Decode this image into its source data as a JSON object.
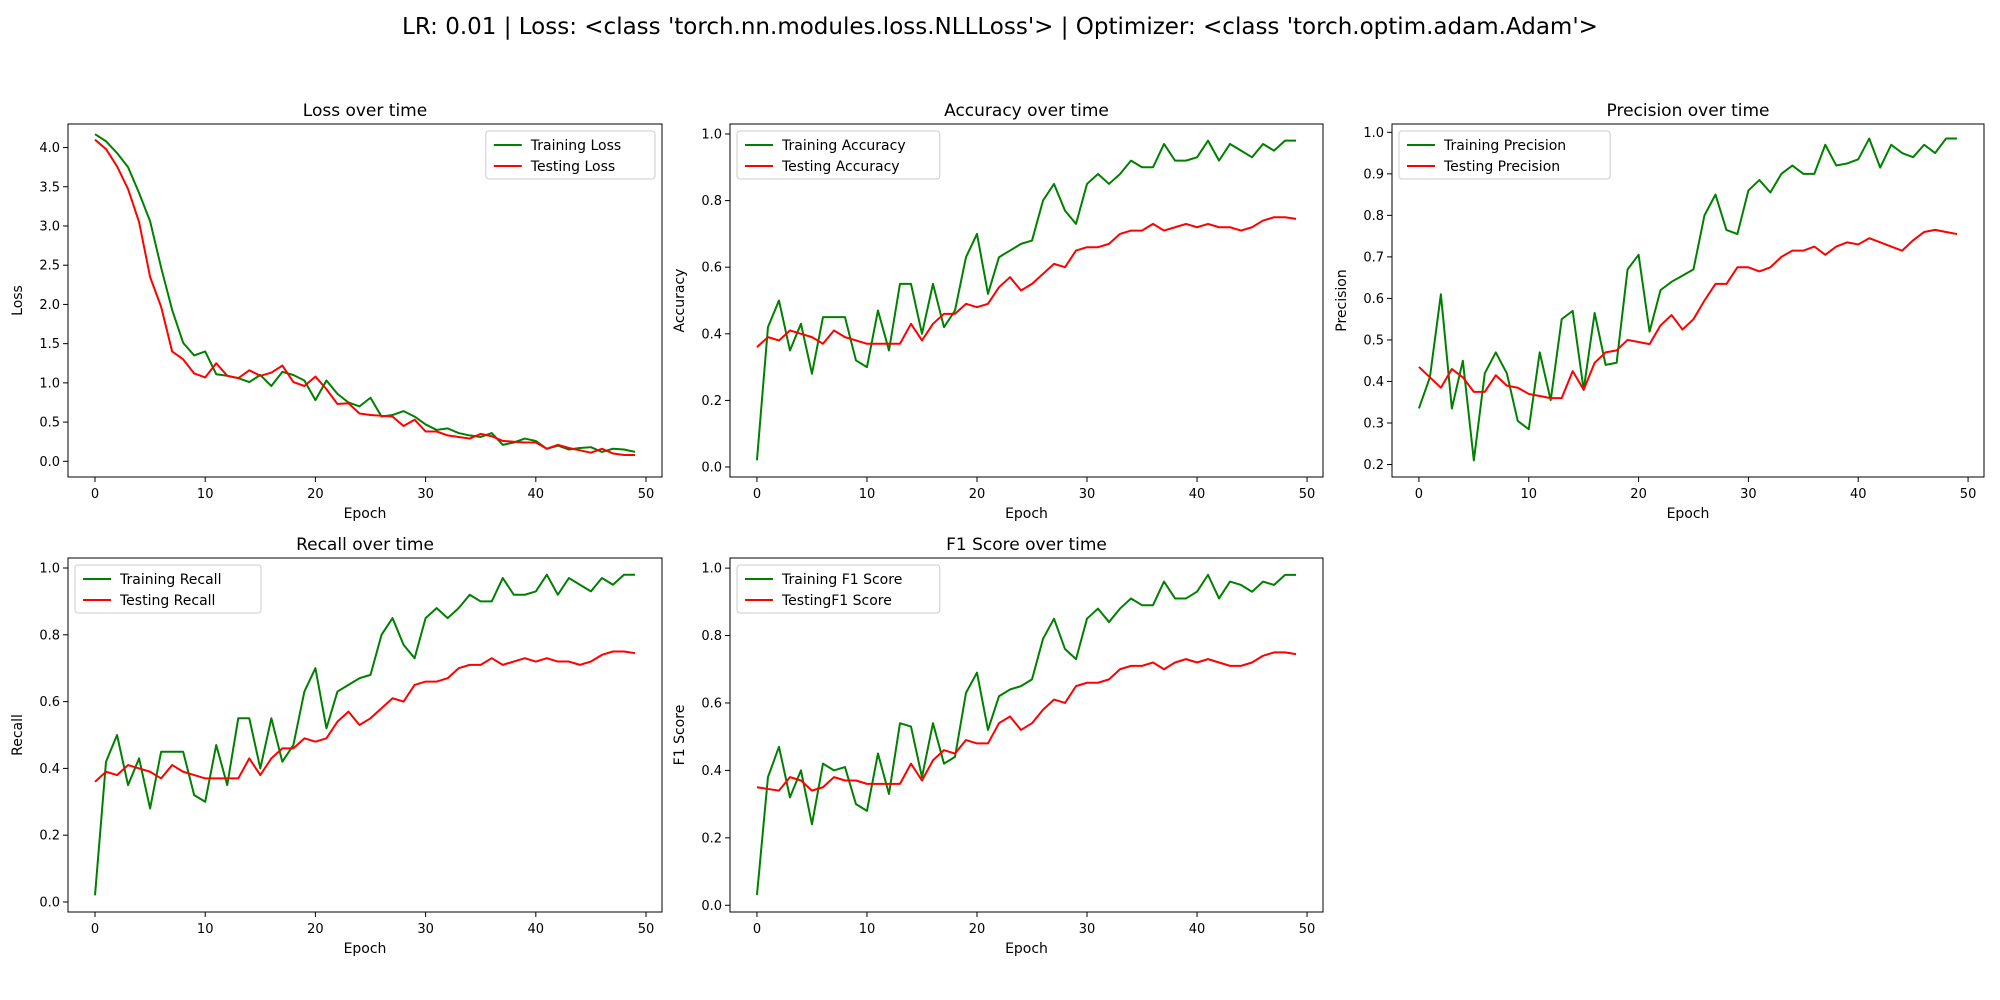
{
  "suptitle": "LR: 0.01 | Loss: <class 'torch.nn.modules.loss.NLLLoss'> | Optimizer: <class 'torch.optim.adam.Adam'>",
  "colors": {
    "train": "#008000",
    "test": "#ff0000"
  },
  "chart_data": [
    {
      "type": "line",
      "title": "Loss over time",
      "xlabel": "Epoch",
      "ylabel": "Loss",
      "xlim": [
        -2.45,
        51.45
      ],
      "ylim": [
        -0.2,
        4.3
      ],
      "xticks": [
        0,
        10,
        20,
        30,
        40,
        50
      ],
      "yticks": [
        0.0,
        0.5,
        1.0,
        1.5,
        2.0,
        2.5,
        3.0,
        3.5,
        4.0
      ],
      "ytick_labels": [
        "0.0",
        "0.5",
        "1.0",
        "1.5",
        "2.0",
        "2.5",
        "3.0",
        "3.5",
        "4.0"
      ],
      "legend_loc": "upper right",
      "x": [
        0,
        1,
        2,
        3,
        4,
        5,
        6,
        7,
        8,
        9,
        10,
        11,
        12,
        13,
        14,
        15,
        16,
        17,
        18,
        19,
        20,
        21,
        22,
        23,
        24,
        25,
        26,
        27,
        28,
        29,
        30,
        31,
        32,
        33,
        34,
        35,
        36,
        37,
        38,
        39,
        40,
        41,
        42,
        43,
        44,
        45,
        46,
        47,
        48,
        49
      ],
      "series": [
        {
          "name": "Training Loss",
          "color": "#008000",
          "values": [
            4.17,
            4.08,
            3.93,
            3.75,
            3.42,
            3.06,
            2.47,
            1.93,
            1.51,
            1.35,
            1.4,
            1.11,
            1.09,
            1.06,
            1.01,
            1.1,
            0.96,
            1.14,
            1.1,
            1.03,
            0.78,
            1.03,
            0.86,
            0.75,
            0.7,
            0.81,
            0.57,
            0.59,
            0.64,
            0.57,
            0.47,
            0.4,
            0.42,
            0.36,
            0.33,
            0.31,
            0.36,
            0.21,
            0.24,
            0.29,
            0.26,
            0.16,
            0.2,
            0.15,
            0.17,
            0.18,
            0.12,
            0.16,
            0.15,
            0.12
          ]
        },
        {
          "name": "Testing Loss",
          "color": "#ff0000",
          "values": [
            4.1,
            3.98,
            3.76,
            3.47,
            3.05,
            2.35,
            1.97,
            1.4,
            1.3,
            1.12,
            1.07,
            1.25,
            1.09,
            1.06,
            1.16,
            1.09,
            1.13,
            1.22,
            1.01,
            0.96,
            1.08,
            0.92,
            0.73,
            0.74,
            0.61,
            0.59,
            0.58,
            0.57,
            0.45,
            0.53,
            0.38,
            0.38,
            0.33,
            0.31,
            0.29,
            0.35,
            0.32,
            0.26,
            0.25,
            0.24,
            0.24,
            0.16,
            0.21,
            0.17,
            0.14,
            0.11,
            0.16,
            0.1,
            0.08,
            0.08
          ]
        }
      ]
    },
    {
      "type": "line",
      "title": "Accuracy over time",
      "xlabel": "Epoch",
      "ylabel": "Accuracy",
      "xlim": [
        -2.45,
        51.45
      ],
      "ylim": [
        -0.03,
        1.03
      ],
      "xticks": [
        0,
        10,
        20,
        30,
        40,
        50
      ],
      "yticks": [
        0.0,
        0.2,
        0.4,
        0.6,
        0.8,
        1.0
      ],
      "ytick_labels": [
        "0.0",
        "0.2",
        "0.4",
        "0.6",
        "0.8",
        "1.0"
      ],
      "legend_loc": "upper left",
      "x": [
        0,
        1,
        2,
        3,
        4,
        5,
        6,
        7,
        8,
        9,
        10,
        11,
        12,
        13,
        14,
        15,
        16,
        17,
        18,
        19,
        20,
        21,
        22,
        23,
        24,
        25,
        26,
        27,
        28,
        29,
        30,
        31,
        32,
        33,
        34,
        35,
        36,
        37,
        38,
        39,
        40,
        41,
        42,
        43,
        44,
        45,
        46,
        47,
        48,
        49
      ],
      "series": [
        {
          "name": "Training Accuracy",
          "color": "#008000",
          "values": [
            0.02,
            0.42,
            0.5,
            0.35,
            0.43,
            0.28,
            0.45,
            0.45,
            0.45,
            0.32,
            0.3,
            0.47,
            0.35,
            0.55,
            0.55,
            0.4,
            0.55,
            0.42,
            0.47,
            0.63,
            0.7,
            0.52,
            0.63,
            0.65,
            0.67,
            0.68,
            0.8,
            0.85,
            0.77,
            0.73,
            0.85,
            0.88,
            0.85,
            0.88,
            0.92,
            0.9,
            0.9,
            0.97,
            0.92,
            0.92,
            0.93,
            0.98,
            0.92,
            0.97,
            0.95,
            0.93,
            0.97,
            0.95,
            0.98,
            0.98
          ]
        },
        {
          "name": "Testing Accuracy",
          "color": "#ff0000",
          "values": [
            0.36,
            0.39,
            0.38,
            0.41,
            0.4,
            0.39,
            0.37,
            0.41,
            0.39,
            0.38,
            0.37,
            0.37,
            0.37,
            0.37,
            0.43,
            0.38,
            0.43,
            0.46,
            0.46,
            0.49,
            0.48,
            0.49,
            0.54,
            0.57,
            0.53,
            0.55,
            0.58,
            0.61,
            0.6,
            0.65,
            0.66,
            0.66,
            0.67,
            0.7,
            0.71,
            0.71,
            0.73,
            0.71,
            0.72,
            0.73,
            0.72,
            0.73,
            0.72,
            0.72,
            0.71,
            0.72,
            0.74,
            0.75,
            0.75,
            0.745
          ]
        }
      ]
    },
    {
      "type": "line",
      "title": "Precision over time",
      "xlabel": "Epoch",
      "ylabel": "Precision",
      "xlim": [
        -2.45,
        51.45
      ],
      "ylim": [
        0.17,
        1.02
      ],
      "xticks": [
        0,
        10,
        20,
        30,
        40,
        50
      ],
      "yticks": [
        0.2,
        0.3,
        0.4,
        0.5,
        0.6,
        0.7,
        0.8,
        0.9,
        1.0
      ],
      "ytick_labels": [
        "0.2",
        "0.3",
        "0.4",
        "0.5",
        "0.6",
        "0.7",
        "0.8",
        "0.9",
        "1.0"
      ],
      "legend_loc": "upper left",
      "x": [
        0,
        1,
        2,
        3,
        4,
        5,
        6,
        7,
        8,
        9,
        10,
        11,
        12,
        13,
        14,
        15,
        16,
        17,
        18,
        19,
        20,
        21,
        22,
        23,
        24,
        25,
        26,
        27,
        28,
        29,
        30,
        31,
        32,
        33,
        34,
        35,
        36,
        37,
        38,
        39,
        40,
        41,
        42,
        43,
        44,
        45,
        46,
        47,
        48,
        49
      ],
      "series": [
        {
          "name": "Training Precision",
          "color": "#008000",
          "values": [
            0.335,
            0.41,
            0.61,
            0.335,
            0.45,
            0.21,
            0.42,
            0.47,
            0.42,
            0.305,
            0.285,
            0.47,
            0.355,
            0.55,
            0.57,
            0.38,
            0.565,
            0.44,
            0.445,
            0.67,
            0.705,
            0.52,
            0.62,
            0.64,
            0.655,
            0.67,
            0.8,
            0.85,
            0.765,
            0.755,
            0.86,
            0.885,
            0.855,
            0.9,
            0.92,
            0.9,
            0.9,
            0.97,
            0.92,
            0.925,
            0.935,
            0.985,
            0.915,
            0.97,
            0.95,
            0.94,
            0.97,
            0.95,
            0.985,
            0.985
          ]
        },
        {
          "name": "Testing Precision",
          "color": "#ff0000",
          "values": [
            0.435,
            0.41,
            0.385,
            0.43,
            0.41,
            0.375,
            0.375,
            0.415,
            0.39,
            0.385,
            0.37,
            0.365,
            0.36,
            0.36,
            0.425,
            0.38,
            0.445,
            0.47,
            0.475,
            0.5,
            0.495,
            0.49,
            0.535,
            0.56,
            0.525,
            0.55,
            0.595,
            0.635,
            0.635,
            0.675,
            0.675,
            0.665,
            0.675,
            0.7,
            0.715,
            0.715,
            0.725,
            0.705,
            0.725,
            0.735,
            0.73,
            0.745,
            0.735,
            0.725,
            0.715,
            0.74,
            0.76,
            0.765,
            0.76,
            0.755
          ]
        }
      ]
    },
    {
      "type": "line",
      "title": "Recall over time",
      "xlabel": "Epoch",
      "ylabel": "Recall",
      "xlim": [
        -2.45,
        51.45
      ],
      "ylim": [
        -0.03,
        1.03
      ],
      "xticks": [
        0,
        10,
        20,
        30,
        40,
        50
      ],
      "yticks": [
        0.0,
        0.2,
        0.4,
        0.6,
        0.8,
        1.0
      ],
      "ytick_labels": [
        "0.0",
        "0.2",
        "0.4",
        "0.6",
        "0.8",
        "1.0"
      ],
      "legend_loc": "upper left",
      "x": [
        0,
        1,
        2,
        3,
        4,
        5,
        6,
        7,
        8,
        9,
        10,
        11,
        12,
        13,
        14,
        15,
        16,
        17,
        18,
        19,
        20,
        21,
        22,
        23,
        24,
        25,
        26,
        27,
        28,
        29,
        30,
        31,
        32,
        33,
        34,
        35,
        36,
        37,
        38,
        39,
        40,
        41,
        42,
        43,
        44,
        45,
        46,
        47,
        48,
        49
      ],
      "series": [
        {
          "name": "Training Recall",
          "color": "#008000",
          "values": [
            0.02,
            0.42,
            0.5,
            0.35,
            0.43,
            0.28,
            0.45,
            0.45,
            0.45,
            0.32,
            0.3,
            0.47,
            0.35,
            0.55,
            0.55,
            0.4,
            0.55,
            0.42,
            0.47,
            0.63,
            0.7,
            0.52,
            0.63,
            0.65,
            0.67,
            0.68,
            0.8,
            0.85,
            0.77,
            0.73,
            0.85,
            0.88,
            0.85,
            0.88,
            0.92,
            0.9,
            0.9,
            0.97,
            0.92,
            0.92,
            0.93,
            0.98,
            0.92,
            0.97,
            0.95,
            0.93,
            0.97,
            0.95,
            0.98,
            0.98
          ]
        },
        {
          "name": "Testing Recall",
          "color": "#ff0000",
          "values": [
            0.36,
            0.39,
            0.38,
            0.41,
            0.4,
            0.39,
            0.37,
            0.41,
            0.39,
            0.38,
            0.37,
            0.37,
            0.37,
            0.37,
            0.43,
            0.38,
            0.43,
            0.46,
            0.46,
            0.49,
            0.48,
            0.49,
            0.54,
            0.57,
            0.53,
            0.55,
            0.58,
            0.61,
            0.6,
            0.65,
            0.66,
            0.66,
            0.67,
            0.7,
            0.71,
            0.71,
            0.73,
            0.71,
            0.72,
            0.73,
            0.72,
            0.73,
            0.72,
            0.72,
            0.71,
            0.72,
            0.74,
            0.75,
            0.75,
            0.745
          ]
        }
      ]
    },
    {
      "type": "line",
      "title": "F1 Score over time",
      "xlabel": "Epoch",
      "ylabel": "F1 Score",
      "xlim": [
        -2.45,
        51.45
      ],
      "ylim": [
        -0.02,
        1.03
      ],
      "xticks": [
        0,
        10,
        20,
        30,
        40,
        50
      ],
      "yticks": [
        0.0,
        0.2,
        0.4,
        0.6,
        0.8,
        1.0
      ],
      "ytick_labels": [
        "0.0",
        "0.2",
        "0.4",
        "0.6",
        "0.8",
        "1.0"
      ],
      "legend_loc": "upper left",
      "x": [
        0,
        1,
        2,
        3,
        4,
        5,
        6,
        7,
        8,
        9,
        10,
        11,
        12,
        13,
        14,
        15,
        16,
        17,
        18,
        19,
        20,
        21,
        22,
        23,
        24,
        25,
        26,
        27,
        28,
        29,
        30,
        31,
        32,
        33,
        34,
        35,
        36,
        37,
        38,
        39,
        40,
        41,
        42,
        43,
        44,
        45,
        46,
        47,
        48,
        49
      ],
      "series": [
        {
          "name": "Training F1 Score",
          "color": "#008000",
          "values": [
            0.03,
            0.38,
            0.47,
            0.32,
            0.4,
            0.24,
            0.42,
            0.4,
            0.41,
            0.3,
            0.28,
            0.45,
            0.33,
            0.54,
            0.53,
            0.38,
            0.54,
            0.42,
            0.44,
            0.63,
            0.69,
            0.52,
            0.62,
            0.64,
            0.65,
            0.67,
            0.79,
            0.85,
            0.76,
            0.73,
            0.85,
            0.88,
            0.84,
            0.88,
            0.91,
            0.89,
            0.89,
            0.96,
            0.91,
            0.91,
            0.93,
            0.98,
            0.91,
            0.96,
            0.95,
            0.93,
            0.96,
            0.95,
            0.98,
            0.98
          ]
        },
        {
          "name": "TestingF1 Score",
          "color": "#ff0000",
          "values": [
            0.35,
            0.345,
            0.34,
            0.38,
            0.37,
            0.34,
            0.35,
            0.38,
            0.37,
            0.37,
            0.36,
            0.36,
            0.36,
            0.36,
            0.42,
            0.37,
            0.43,
            0.46,
            0.45,
            0.49,
            0.48,
            0.48,
            0.54,
            0.56,
            0.52,
            0.54,
            0.58,
            0.61,
            0.6,
            0.65,
            0.66,
            0.66,
            0.67,
            0.7,
            0.71,
            0.71,
            0.72,
            0.7,
            0.72,
            0.73,
            0.72,
            0.73,
            0.72,
            0.71,
            0.71,
            0.72,
            0.74,
            0.75,
            0.75,
            0.745
          ]
        }
      ]
    }
  ]
}
